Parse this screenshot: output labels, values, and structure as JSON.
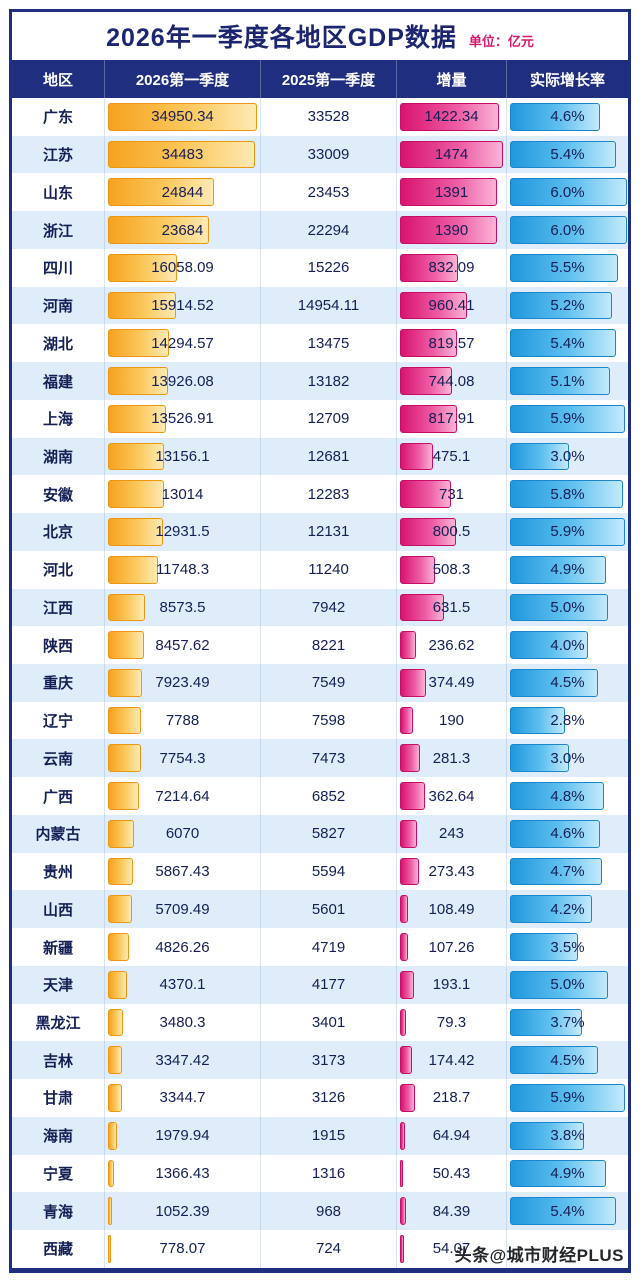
{
  "header": {
    "title": "2026年一季度各地区GDP数据",
    "unit_label": "单位：亿元"
  },
  "watermark": "头条@城市财经PLUS",
  "bar_scales": {
    "q2026_max": 35200,
    "delta_max": 1500,
    "rate_max": 6.0
  },
  "colors": {
    "navy": "#202e7f",
    "title": "#1b2570",
    "unit": "#d41a6b",
    "text": "#141f55",
    "row_alt": "#dfecfa",
    "bar_yellow": "#f6a21f",
    "bar_pink": "#d8136f",
    "bar_blue": "#2097dd"
  },
  "chart_data": {
    "type": "table",
    "title": "2026年一季度各地区GDP数据",
    "unit": "亿元",
    "columns": [
      "地区",
      "2026第一季度",
      "2025第一季度",
      "增量",
      "实际增长率"
    ],
    "regions": [
      "广东",
      "江苏",
      "山东",
      "浙江",
      "四川",
      "河南",
      "湖北",
      "福建",
      "上海",
      "湖南",
      "安徽",
      "北京",
      "河北",
      "江西",
      "陕西",
      "重庆",
      "辽宁",
      "云南",
      "广西",
      "内蒙古",
      "贵州",
      "山西",
      "新疆",
      "天津",
      "黑龙江",
      "吉林",
      "甘肃",
      "海南",
      "宁夏",
      "青海",
      "西藏"
    ],
    "series": [
      {
        "name": "2026第一季度",
        "values": [
          34950.34,
          34483,
          24844,
          23684,
          16058.09,
          15914.52,
          14294.57,
          13926.08,
          13526.91,
          13156.1,
          13014,
          12931.5,
          11748.3,
          8573.5,
          8457.62,
          7923.49,
          7788,
          7754.3,
          7214.64,
          6070,
          5867.43,
          5709.49,
          4826.26,
          4370.1,
          3480.3,
          3347.42,
          3344.7,
          1979.94,
          1366.43,
          1052.39,
          778.07
        ]
      },
      {
        "name": "2025第一季度",
        "values": [
          33528,
          33009,
          23453,
          22294,
          15226,
          14954.11,
          13475,
          13182,
          12709,
          12681,
          12283,
          12131,
          11240,
          7942,
          8221,
          7549,
          7598,
          7473,
          6852,
          5827,
          5594,
          5601,
          4719,
          4177,
          3401,
          3173,
          3126,
          1915,
          1316,
          968,
          724
        ]
      },
      {
        "name": "增量",
        "values": [
          1422.34,
          1474,
          1391,
          1390,
          832.09,
          960.41,
          819.57,
          744.08,
          817.91,
          475.1,
          731,
          800.5,
          508.3,
          631.5,
          236.62,
          374.49,
          190,
          281.3,
          362.64,
          243,
          273.43,
          108.49,
          107.26,
          193.1,
          79.3,
          174.42,
          218.7,
          64.94,
          50.43,
          84.39,
          54.07
        ]
      },
      {
        "name": "实际增长率(%)",
        "values": [
          4.6,
          5.4,
          6.0,
          6.0,
          5.5,
          5.2,
          5.4,
          5.1,
          5.9,
          3.0,
          5.8,
          5.9,
          4.9,
          5.0,
          4.0,
          4.5,
          2.8,
          3.0,
          4.8,
          4.6,
          4.7,
          4.2,
          3.5,
          5.0,
          3.7,
          4.5,
          5.9,
          3.8,
          4.9,
          5.4,
          null
        ]
      }
    ]
  }
}
